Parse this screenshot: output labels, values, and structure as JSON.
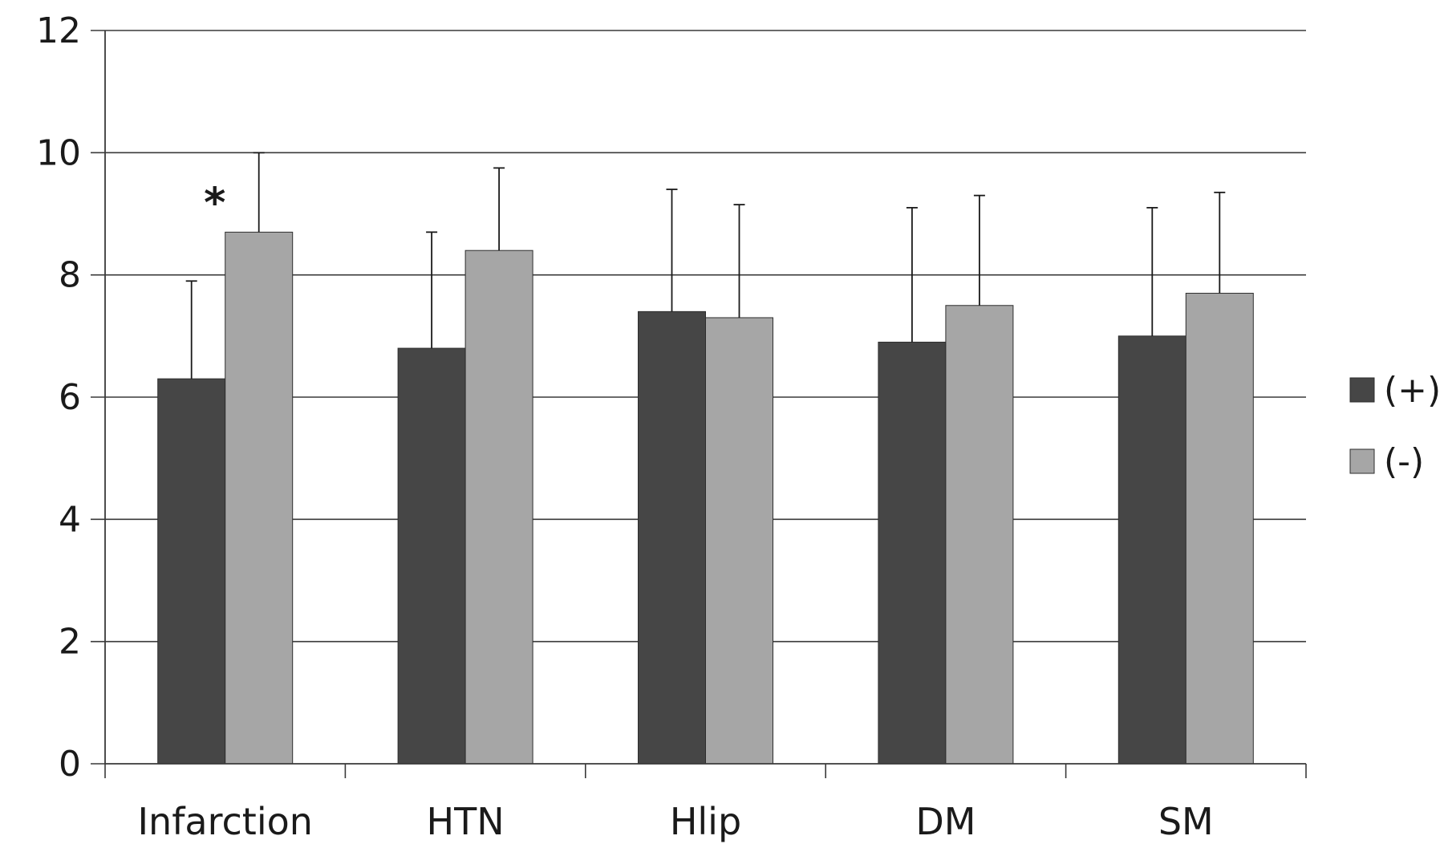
{
  "chart_data": {
    "type": "bar",
    "categories": [
      "Infarction",
      "HTN",
      "Hlip",
      "DM",
      "SM"
    ],
    "series": [
      {
        "name": "(+)",
        "color": "#464646",
        "values": [
          6.3,
          6.8,
          7.4,
          6.9,
          7.0
        ],
        "errors": [
          1.6,
          1.9,
          2.0,
          2.2,
          2.1
        ]
      },
      {
        "name": "(-)",
        "color": "#a6a6a6",
        "values": [
          8.7,
          8.4,
          7.3,
          7.5,
          7.7
        ],
        "errors": [
          1.3,
          1.35,
          1.85,
          1.8,
          1.65
        ]
      }
    ],
    "ylim": [
      0,
      12
    ],
    "yticks": [
      "0",
      "2",
      "4",
      "6",
      "8",
      "10",
      "12"
    ],
    "grid": true,
    "legend_position": "right",
    "annotations": [
      {
        "text": "*",
        "category": "Infarction"
      }
    ]
  }
}
